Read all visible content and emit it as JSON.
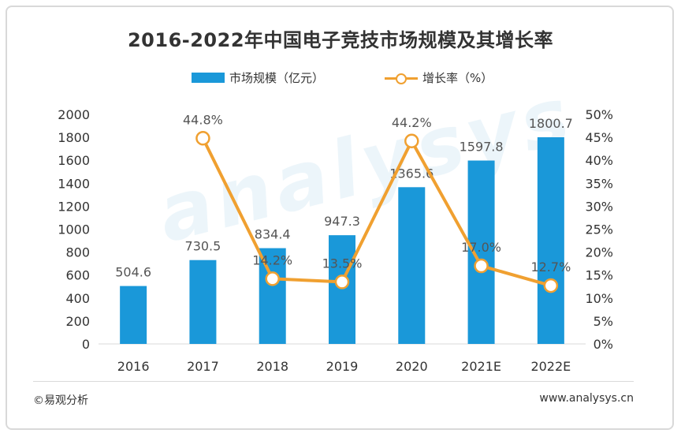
{
  "title": "2016-2022年中国电子竞技市场规模及其增长率",
  "legend": {
    "bar_label": "市场规模（亿元）",
    "line_label": "增长率（%）"
  },
  "colors": {
    "bar": "#1a98d9",
    "line": "#f0a030",
    "text": "#333333",
    "label": "#555555"
  },
  "watermark": "analysys",
  "footer": {
    "left": "©易观分析",
    "right": "www.analysys.cn"
  },
  "chart_data": {
    "type": "bar",
    "title": "2016-2022年中国电子竞技市场规模及其增长率",
    "categories": [
      "2016",
      "2017",
      "2018",
      "2019",
      "2020",
      "2021E",
      "2022E"
    ],
    "series": [
      {
        "name": "市场规模（亿元）",
        "type": "bar",
        "axis": "left",
        "values": [
          504.6,
          730.5,
          834.4,
          947.3,
          1365.6,
          1597.8,
          1800.7
        ],
        "labels": [
          "504.6",
          "730.5",
          "834.4",
          "947.3",
          "1365.6",
          "1597.8",
          "1800.7"
        ]
      },
      {
        "name": "增长率（%）",
        "type": "line",
        "axis": "right",
        "values": [
          null,
          44.8,
          14.2,
          13.5,
          44.2,
          17.0,
          12.7
        ],
        "labels": [
          "",
          "44.8%",
          "14.2%",
          "13.5%",
          "44.2%",
          "17.0%",
          "12.7%"
        ]
      }
    ],
    "ylim": [
      0,
      2000
    ],
    "yticks": [
      "0",
      "200",
      "400",
      "600",
      "800",
      "1000",
      "1200",
      "1400",
      "1600",
      "1800",
      "2000"
    ],
    "y2lim": [
      0,
      50
    ],
    "y2ticks": [
      "0%",
      "5%",
      "10%",
      "15%",
      "20%",
      "25%",
      "30%",
      "35%",
      "40%",
      "45%",
      "50%"
    ],
    "grid": false,
    "legend_position": "top"
  }
}
